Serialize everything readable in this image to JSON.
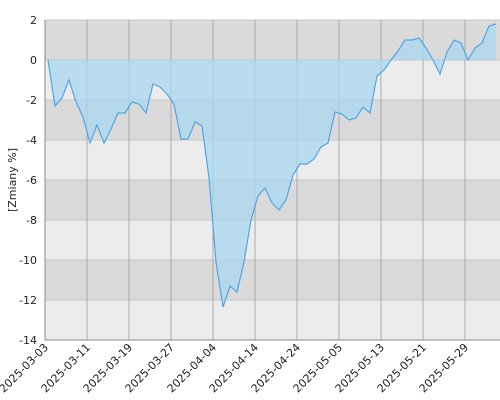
{
  "chart_data": {
    "type": "area",
    "y_label": "[Zmiany %]",
    "categories": [
      "2025-03-03",
      null,
      null,
      null,
      null,
      null,
      "2025-03-11",
      null,
      null,
      null,
      null,
      null,
      "2025-03-19",
      null,
      null,
      null,
      null,
      null,
      "2025-03-27",
      null,
      null,
      null,
      null,
      null,
      "2025-04-04",
      null,
      null,
      null,
      null,
      null,
      "2025-04-14",
      null,
      null,
      null,
      null,
      null,
      "2025-04-24",
      null,
      null,
      null,
      null,
      null,
      "2025-05-05",
      null,
      null,
      null,
      null,
      null,
      "2025-05-13",
      null,
      null,
      null,
      null,
      null,
      "2025-05-21",
      null,
      null,
      null,
      null,
      null,
      "2025-05-29",
      null,
      null,
      null,
      null
    ],
    "values": [
      0,
      -2.3,
      -1.9,
      -1.0,
      -2.1,
      -2.85,
      -4.15,
      -3.25,
      -4.15,
      -3.45,
      -2.65,
      -2.65,
      -2.1,
      -2.2,
      -2.65,
      -1.2,
      -1.35,
      -1.7,
      -2.2,
      -3.95,
      -3.95,
      -3.1,
      -3.3,
      -5.9,
      -10.1,
      -12.35,
      -11.3,
      -11.6,
      -10.1,
      -8.0,
      -6.8,
      -6.4,
      -7.15,
      -7.5,
      -7.0,
      -5.75,
      -5.2,
      -5.2,
      -4.95,
      -4.35,
      -4.15,
      -2.6,
      -2.7,
      -3.0,
      -2.9,
      -2.35,
      -2.65,
      -0.8,
      -0.5,
      0,
      0.45,
      1.0,
      1.0,
      1.1,
      0.6,
      0,
      -0.7,
      0.4,
      1.0,
      0.85,
      0,
      0.6,
      0.85,
      1.7,
      1.8
    ],
    "color": "#4ea6e6",
    "fill": "#a8d8ef",
    "ylim": [
      -14,
      2
    ],
    "yticks": [
      2,
      0,
      -2,
      -4,
      -6,
      -8,
      -10,
      -12,
      -14
    ],
    "grid": true
  }
}
